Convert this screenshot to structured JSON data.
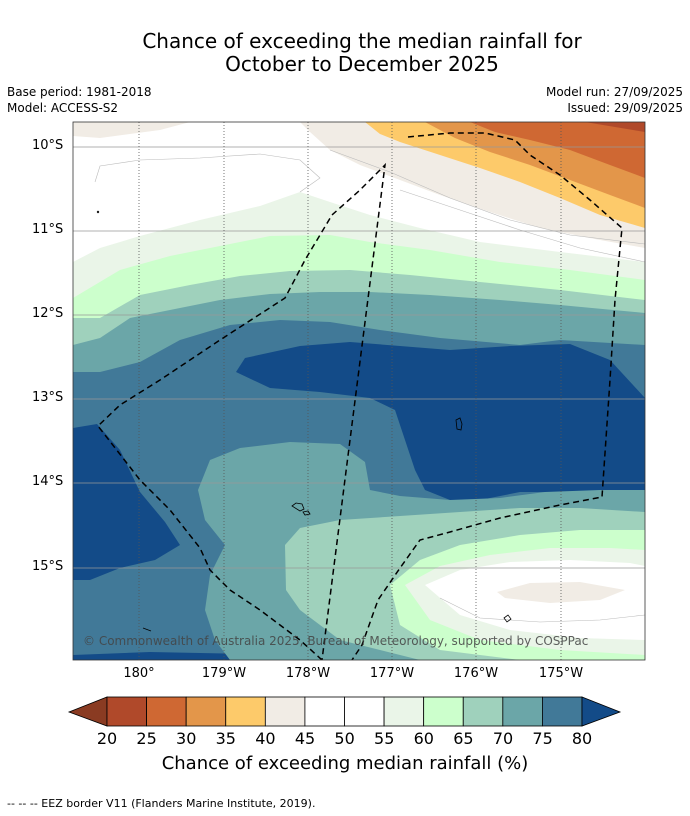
{
  "title": {
    "line1": "Chance of exceeding the median rainfall for",
    "line2": "October to December 2025"
  },
  "meta": {
    "base_period": "Base period: 1981-2018",
    "model": "Model: ACCESS-S2",
    "model_run": "Model run: 27/09/2025",
    "issued": "Issued: 29/09/2025"
  },
  "map": {
    "lat_labels": [
      "10°S",
      "11°S",
      "12°S",
      "13°S",
      "14°S",
      "15°S"
    ],
    "lon_labels": [
      "180°",
      "179°W",
      "178°W",
      "177°W",
      "176°W",
      "175°W"
    ],
    "copyright": "© Commonwealth of Australia 2025, Bureau of Meteorology, supported by COSPPac",
    "colors": {
      "c20": "#8a3b22",
      "c25": "#b0492a",
      "c30": "#cf6833",
      "c35": "#e3964a",
      "c40": "#fdca6a",
      "c45": "#f1ece5",
      "c50": "#ffffff",
      "c55": "#ffffff",
      "c60": "#eaf5e8",
      "c65": "#ccffcc",
      "c70": "#9fd1bc",
      "c75": "#6ba6a8",
      "c80": "#417998",
      "c85": "#134b88"
    }
  },
  "colorbar": {
    "ticks": [
      "20",
      "25",
      "30",
      "35",
      "40",
      "45",
      "50",
      "55",
      "60",
      "65",
      "70",
      "75",
      "80"
    ],
    "label": "Chance of exceeding median rainfall (%)"
  },
  "footer": {
    "eez": "--  --  -- EEZ border V11 (Flanders Marine Institute, 2019)."
  }
}
